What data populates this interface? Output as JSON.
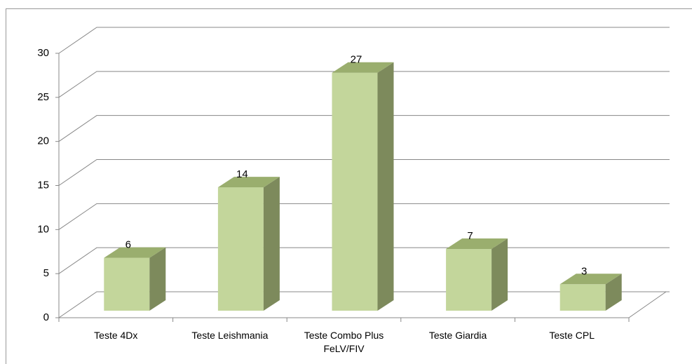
{
  "chart_data": {
    "type": "bar3d",
    "categories": [
      "Teste 4Dx",
      "Teste Leishmania",
      "Teste Combo Plus FeLV/FIV",
      "Teste Giardia",
      "Teste CPL"
    ],
    "values": [
      6,
      14,
      27,
      7,
      3
    ],
    "color": "#c3d69b",
    "ylim": [
      0,
      30
    ],
    "yticks": [
      0,
      5,
      10,
      15,
      20,
      25,
      30
    ],
    "grid": true
  }
}
